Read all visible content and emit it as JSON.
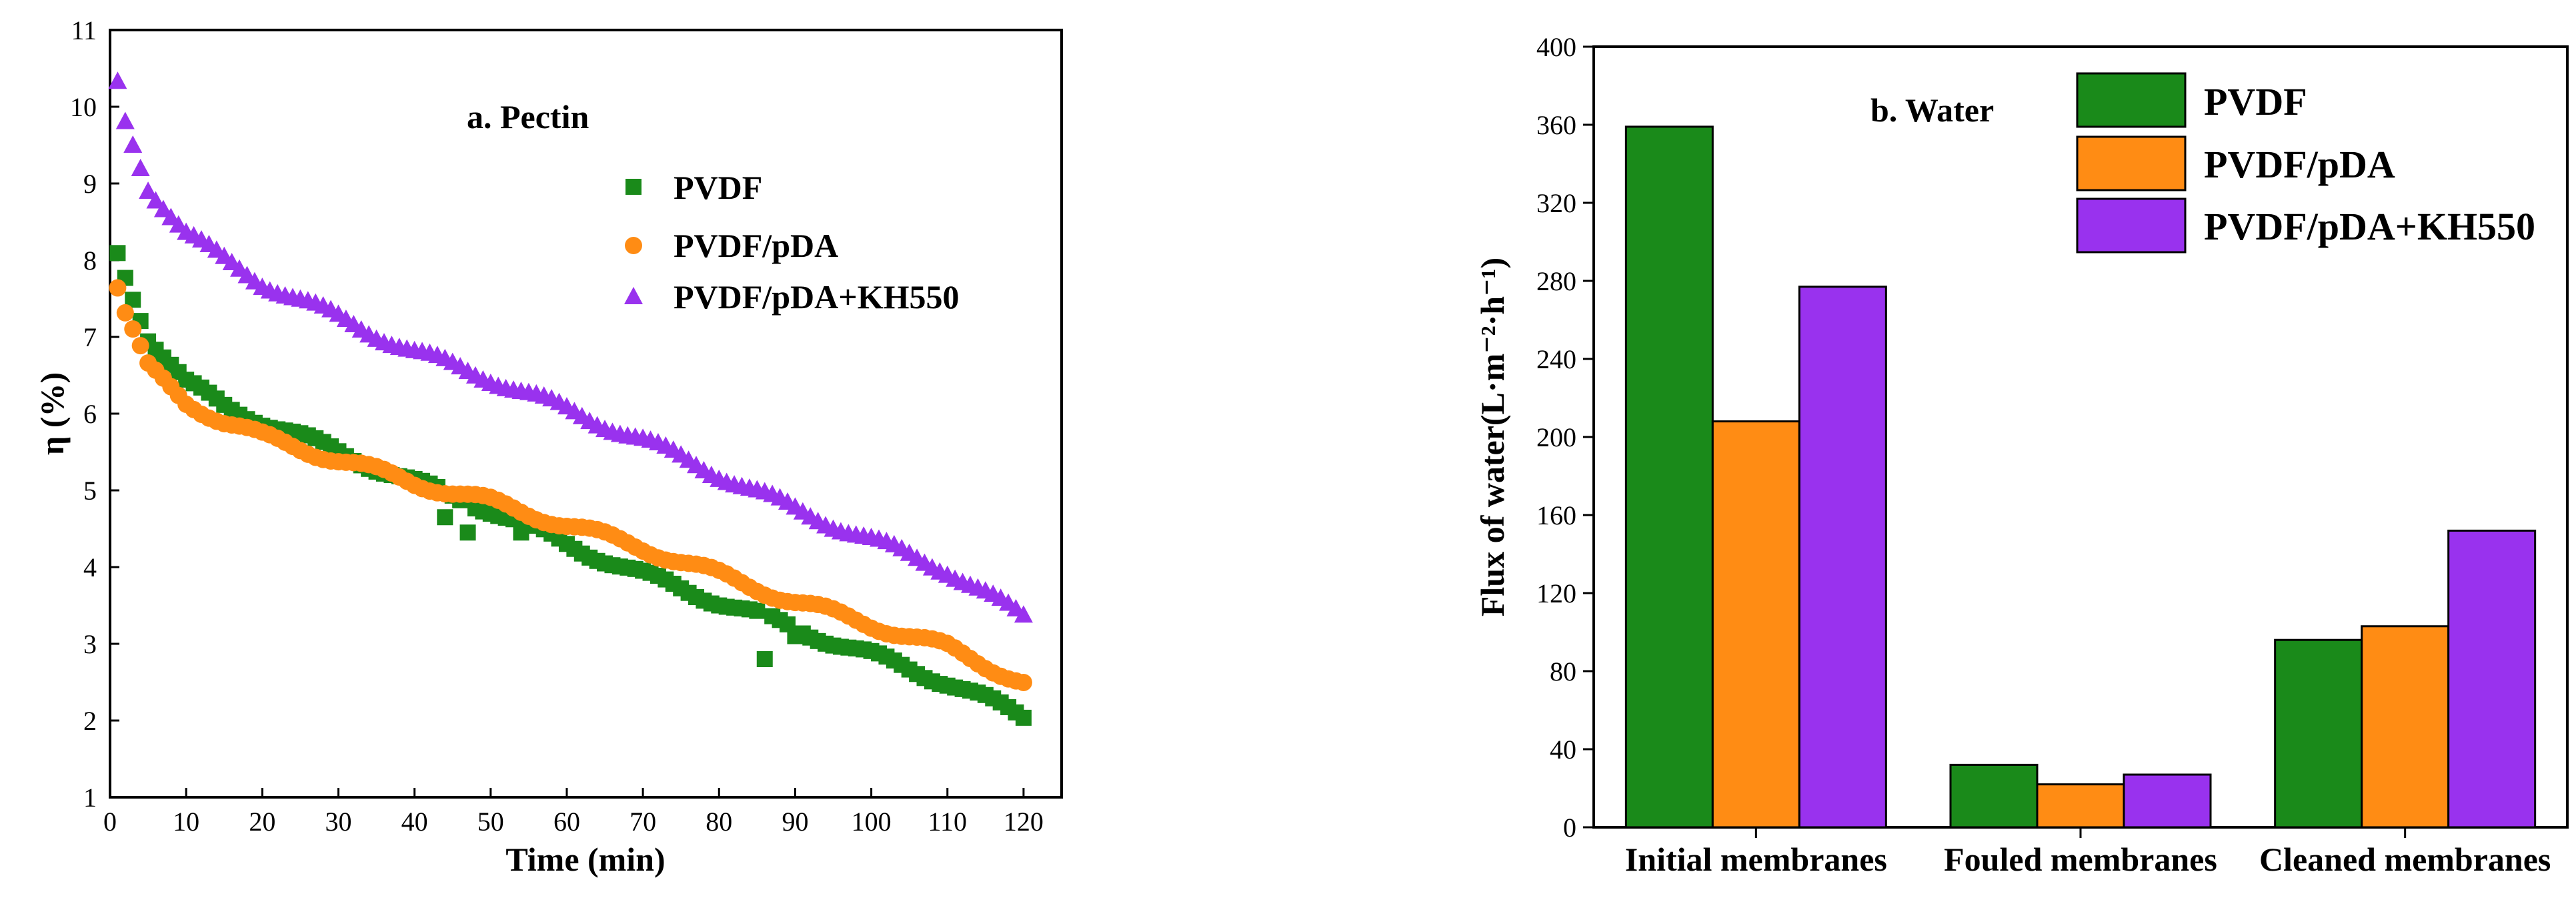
{
  "chart_data": [
    {
      "type": "scatter",
      "panel_label": "a. Pectin",
      "xlabel": "Time (min)",
      "ylabel": "η (%)",
      "xlim": [
        0,
        125
      ],
      "ylim": [
        1,
        11
      ],
      "xticks": [
        0,
        10,
        20,
        30,
        40,
        50,
        60,
        70,
        80,
        90,
        100,
        110,
        120
      ],
      "yticks": [
        1,
        2,
        3,
        4,
        5,
        6,
        7,
        8,
        9,
        10,
        11
      ],
      "legend_position": "upper-right",
      "series": [
        {
          "name": "PVDF",
          "marker": "square",
          "color": "#1a8a1a",
          "anchors_t": [
            1,
            2,
            5,
            10,
            15,
            20,
            30,
            40,
            50,
            60,
            70,
            80,
            90,
            100,
            110,
            120
          ],
          "anchors_v": [
            8.1,
            7.8,
            7.0,
            6.4,
            6.1,
            5.9,
            5.5,
            5.1,
            4.75,
            4.3,
            3.9,
            3.55,
            3.2,
            2.85,
            2.5,
            2.05
          ],
          "outliers": [
            [
              86,
              2.8
            ],
            [
              90,
              3.1
            ],
            [
              44,
              4.65
            ],
            [
              47,
              4.45
            ],
            [
              54,
              4.45
            ]
          ]
        },
        {
          "name": "PVDF/pDA",
          "marker": "circle",
          "color": "#ff8c14",
          "anchors_t": [
            1,
            2,
            5,
            10,
            15,
            20,
            30,
            40,
            50,
            60,
            70,
            80,
            90,
            100,
            110,
            120
          ],
          "anchors_v": [
            7.65,
            7.3,
            6.6,
            6.15,
            5.9,
            5.7,
            5.4,
            5.1,
            4.85,
            4.55,
            4.25,
            3.9,
            3.55,
            3.25,
            2.95,
            2.5
          ],
          "outliers": []
        },
        {
          "name": "PVDF/pDA+KH550",
          "marker": "triangle",
          "color": "#9932ee",
          "anchors_t": [
            1,
            2,
            5,
            10,
            15,
            20,
            30,
            40,
            50,
            60,
            70,
            80,
            90,
            100,
            110,
            120
          ],
          "anchors_v": [
            10.3,
            9.8,
            8.95,
            8.35,
            8.0,
            7.7,
            7.25,
            6.8,
            6.45,
            6.05,
            5.65,
            5.2,
            4.75,
            4.35,
            3.95,
            3.35
          ],
          "outliers": []
        }
      ]
    },
    {
      "type": "bar",
      "panel_label": "b. Water",
      "xlabel": "",
      "ylabel": "Flux of water(L·m⁻²·h⁻¹)",
      "ylim": [
        0,
        400
      ],
      "yticks": [
        0,
        40,
        80,
        120,
        160,
        200,
        240,
        280,
        320,
        360,
        400
      ],
      "categories": [
        "Initial membranes",
        "Fouled membranes",
        "Cleaned membranes"
      ],
      "legend_position": "top-right",
      "series": [
        {
          "name": "PVDF",
          "color": "#1a8a1a",
          "values": [
            359,
            32,
            96
          ]
        },
        {
          "name": "PVDF/pDA",
          "color": "#ff8c14",
          "values": [
            208,
            22,
            103
          ]
        },
        {
          "name": "PVDF/pDA+KH550",
          "color": "#9932ee",
          "values": [
            277,
            27,
            152
          ]
        }
      ]
    }
  ]
}
